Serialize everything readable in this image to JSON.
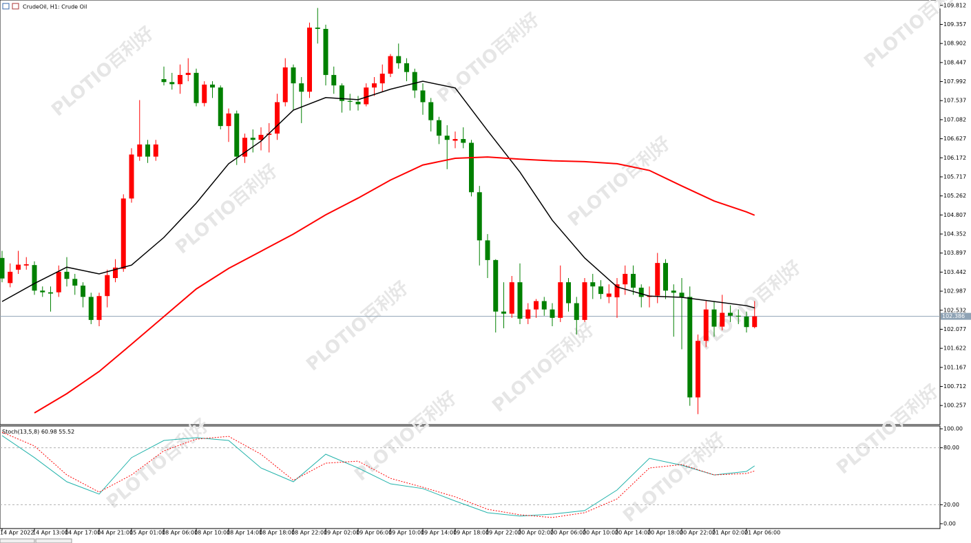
{
  "chart_data": [
    {
      "type": "candlestick",
      "title": "CrudeOil, H1:  Crude Oil",
      "watermark": [
        "百利好",
        "PLOTIO"
      ],
      "categories": [
        "14 Apr 2022",
        null,
        null,
        null,
        "14 Apr 13:00",
        null,
        null,
        null,
        "14 Apr 17:00",
        null,
        null,
        null,
        "14 Apr 21:00",
        null,
        null,
        null,
        "15 Apr 01:00",
        null,
        null,
        null,
        "18 Apr 06:00",
        null,
        null,
        null,
        "18 Apr 10:00",
        null,
        null,
        null,
        "18 Apr 14:00",
        null,
        null,
        null,
        "18 Apr 18:00",
        null,
        null,
        null,
        "18 Apr 22:00",
        null,
        null,
        null,
        "19 Apr 02:00",
        null,
        null,
        null,
        "19 Apr 06:00",
        null,
        null,
        null,
        "19 Apr 10:00",
        null,
        null,
        null,
        "19 Apr 14:00",
        null,
        null,
        null,
        "19 Apr 18:00",
        null,
        null,
        null,
        "19 Apr 22:00",
        null,
        null,
        null,
        "20 Apr 02:00",
        null,
        null,
        null,
        "20 Apr 06:00",
        null,
        null,
        null,
        "20 Apr 10:00",
        null,
        null,
        null,
        "20 Apr 14:00",
        null,
        null,
        null,
        "20 Apr 18:00",
        null,
        null,
        null,
        "20 Apr 22:00",
        null,
        null,
        null,
        "21 Apr 02:00",
        null,
        null,
        null,
        "21 Apr 06:00",
        null
      ],
      "open": [
        103.78,
        103.18,
        103.5,
        103.6,
        103.61,
        103.0,
        102.96,
        102.96,
        103.45,
        103.28,
        103.12,
        102.85,
        102.3,
        102.87,
        103.3,
        103.52,
        105.2,
        106.2,
        106.49,
        106.2,
        108.05,
        107.98,
        107.93,
        108.15,
        108.2,
        107.48,
        107.92,
        107.85,
        106.93,
        107.23,
        106.2,
        106.65,
        106.6,
        106.72,
        106.75,
        107.5,
        108.33,
        107.95,
        107.75,
        109.28,
        109.25,
        108.15,
        107.9,
        107.53,
        107.51,
        107.45,
        107.85,
        107.95,
        108.18,
        108.6,
        108.43,
        108.22,
        107.78,
        107.5,
        107.07,
        106.7,
        106.58,
        106.62,
        106.53,
        105.35,
        104.2,
        103.73,
        102.5,
        102.45,
        103.2,
        102.33,
        102.55,
        102.75,
        102.55,
        102.35,
        103.2,
        102.7,
        102.3,
        103.2,
        103.1,
        102.85,
        102.84,
        103.15,
        103.4,
        103.07,
        102.85,
        102.88,
        103.66,
        103.0,
        102.95,
        102.85,
        100.45,
        101.8,
        102.55,
        102.14,
        102.47,
        102.4,
        102.38,
        102.13
      ],
      "high": [
        103.95,
        103.65,
        103.95,
        103.8,
        103.7,
        103.1,
        103.1,
        103.6,
        103.8,
        103.4,
        103.2,
        102.95,
        102.95,
        103.5,
        103.75,
        105.3,
        106.4,
        107.55,
        106.6,
        106.6,
        108.35,
        108.2,
        108.4,
        108.55,
        108.3,
        108.0,
        108.0,
        107.9,
        107.35,
        107.3,
        106.75,
        106.85,
        106.9,
        107.0,
        107.7,
        108.55,
        108.4,
        108.1,
        109.4,
        109.75,
        109.35,
        108.35,
        107.95,
        107.7,
        107.65,
        107.95,
        108.1,
        108.4,
        108.65,
        108.9,
        108.55,
        108.3,
        107.95,
        107.6,
        107.15,
        106.95,
        106.8,
        106.9,
        106.6,
        105.5,
        104.35,
        103.75,
        103.2,
        103.35,
        103.65,
        102.7,
        102.8,
        102.85,
        102.7,
        103.6,
        103.3,
        102.85,
        103.3,
        103.4,
        103.25,
        103.15,
        103.3,
        103.6,
        103.6,
        103.15,
        103.1,
        103.9,
        103.75,
        103.15,
        103.3,
        103.1,
        101.95,
        102.75,
        102.75,
        102.9,
        102.65,
        102.55,
        102.5,
        102.75
      ],
      "low": [
        103.2,
        103.08,
        103.4,
        103.5,
        102.9,
        102.85,
        102.5,
        102.85,
        103.1,
        102.9,
        102.6,
        102.2,
        102.15,
        102.6,
        103.2,
        103.45,
        105.1,
        106.1,
        106.05,
        106.1,
        107.9,
        107.8,
        107.7,
        108.0,
        107.4,
        107.4,
        107.6,
        106.85,
        106.55,
        106.0,
        106.05,
        106.3,
        106.35,
        106.3,
        106.6,
        107.4,
        107.3,
        107.0,
        107.6,
        108.9,
        107.9,
        107.7,
        107.25,
        107.3,
        107.3,
        107.4,
        107.65,
        107.75,
        108.1,
        108.3,
        108.0,
        107.6,
        107.2,
        106.8,
        106.5,
        105.9,
        106.4,
        106.4,
        105.25,
        103.6,
        103.3,
        102.0,
        102.1,
        102.35,
        102.2,
        102.2,
        102.35,
        102.4,
        102.15,
        102.25,
        102.5,
        101.95,
        102.25,
        102.8,
        102.8,
        102.7,
        102.35,
        102.9,
        102.9,
        102.6,
        102.6,
        102.7,
        102.8,
        101.9,
        101.6,
        100.25,
        100.05,
        101.65,
        101.9,
        102.05,
        102.25,
        102.2,
        102.0,
        102.1
      ],
      "close": [
        103.29,
        103.45,
        103.62,
        103.63,
        103.0,
        102.96,
        102.93,
        103.45,
        103.28,
        103.12,
        102.85,
        102.3,
        102.87,
        103.37,
        103.55,
        105.2,
        106.25,
        106.49,
        106.2,
        106.49,
        107.98,
        107.93,
        108.15,
        108.2,
        107.48,
        107.92,
        107.85,
        106.93,
        107.23,
        106.2,
        106.65,
        106.6,
        106.72,
        106.75,
        107.5,
        108.33,
        107.95,
        107.75,
        109.28,
        109.25,
        108.15,
        107.9,
        107.53,
        107.51,
        107.45,
        107.85,
        107.95,
        108.18,
        108.6,
        108.43,
        108.22,
        107.78,
        107.5,
        107.07,
        106.7,
        106.6,
        106.62,
        106.53,
        105.35,
        104.2,
        103.73,
        102.5,
        102.45,
        103.2,
        102.33,
        102.55,
        102.75,
        102.55,
        102.35,
        103.2,
        102.7,
        102.3,
        103.2,
        103.1,
        102.92,
        102.93,
        103.15,
        103.4,
        103.07,
        102.85,
        102.88,
        103.66,
        103.0,
        102.95,
        102.85,
        100.45,
        101.8,
        102.55,
        102.14,
        102.47,
        102.4,
        102.38,
        102.13,
        102.386
      ],
      "up_color": "#ff0000",
      "down_color": "#008000",
      "series": [
        {
          "color": "#000000",
          "x": [
            0,
            4,
            8,
            12,
            16,
            20,
            24,
            28,
            32,
            36,
            40,
            44,
            48,
            52,
            56,
            60,
            64,
            68,
            72,
            76,
            80,
            84,
            88,
            92,
            93
          ],
          "values": [
            102.74,
            103.17,
            103.56,
            103.4,
            103.61,
            104.27,
            105.09,
            106.03,
            106.57,
            107.31,
            107.61,
            107.56,
            107.81,
            108.0,
            107.84,
            106.82,
            105.83,
            104.68,
            103.78,
            103.09,
            102.87,
            102.84,
            102.74,
            102.64,
            102.59
          ]
        },
        {
          "color": "#ff0000",
          "x": [
            4,
            8,
            12,
            16,
            20,
            24,
            28,
            32,
            36,
            40,
            44,
            48,
            52,
            56,
            60,
            64,
            68,
            72,
            76,
            80,
            84,
            88,
            92,
            93
          ],
          "values": [
            100.08,
            100.54,
            101.07,
            101.72,
            102.38,
            103.04,
            103.53,
            103.94,
            104.35,
            104.81,
            105.21,
            105.64,
            106.0,
            106.16,
            106.19,
            106.14,
            106.1,
            106.08,
            106.03,
            105.87,
            105.5,
            105.14,
            104.88,
            104.8
          ]
        }
      ],
      "price_line": 102.386,
      "ylim": [
        99.8,
        109.94
      ],
      "yticks": [
        109.812,
        109.357,
        108.902,
        108.447,
        107.992,
        107.537,
        107.082,
        106.627,
        106.172,
        105.717,
        105.262,
        104.807,
        104.352,
        103.897,
        103.442,
        102.987,
        102.532,
        102.077,
        101.622,
        101.167,
        100.712,
        100.257
      ]
    },
    {
      "type": "line",
      "title": "Stoch(13,5,8)",
      "x": [
        0,
        4,
        8,
        12,
        16,
        20,
        24,
        28,
        32,
        36,
        40,
        44,
        48,
        52,
        56,
        60,
        64,
        68,
        72,
        76,
        80,
        84,
        88,
        92,
        93
      ],
      "series": [
        {
          "color": "#20b2aa",
          "values": [
            92.8,
            69.6,
            44.2,
            31.2,
            69.6,
            87.7,
            90.6,
            87.7,
            58.7,
            44.2,
            73.2,
            58.7,
            42.0,
            37.0,
            23.9,
            11.6,
            8.0,
            10.1,
            13.8,
            35.5,
            68.8,
            61.6,
            51.4,
            55.1,
            60.98
          ]
        },
        {
          "color": "#ff0000",
          "dashed": true,
          "values": [
            96.4,
            81.9,
            51.4,
            33.3,
            51.4,
            76.8,
            89.1,
            92.0,
            73.2,
            45.7,
            63.8,
            65.9,
            47.8,
            38.4,
            28.3,
            15.2,
            9.4,
            6.5,
            11.6,
            26.1,
            58.7,
            62.3,
            51.4,
            52.9,
            55.52
          ]
        }
      ],
      "levels": [
        80,
        20
      ],
      "ylim": [
        -5.1,
        102.2
      ],
      "yticks": [
        {
          "value": 100,
          "label": "100.00"
        },
        {
          "value": 80,
          "label": "80.00"
        },
        {
          "value": 20,
          "label": "20.00"
        },
        {
          "value": 0,
          "label": "0.00"
        }
      ]
    }
  ]
}
